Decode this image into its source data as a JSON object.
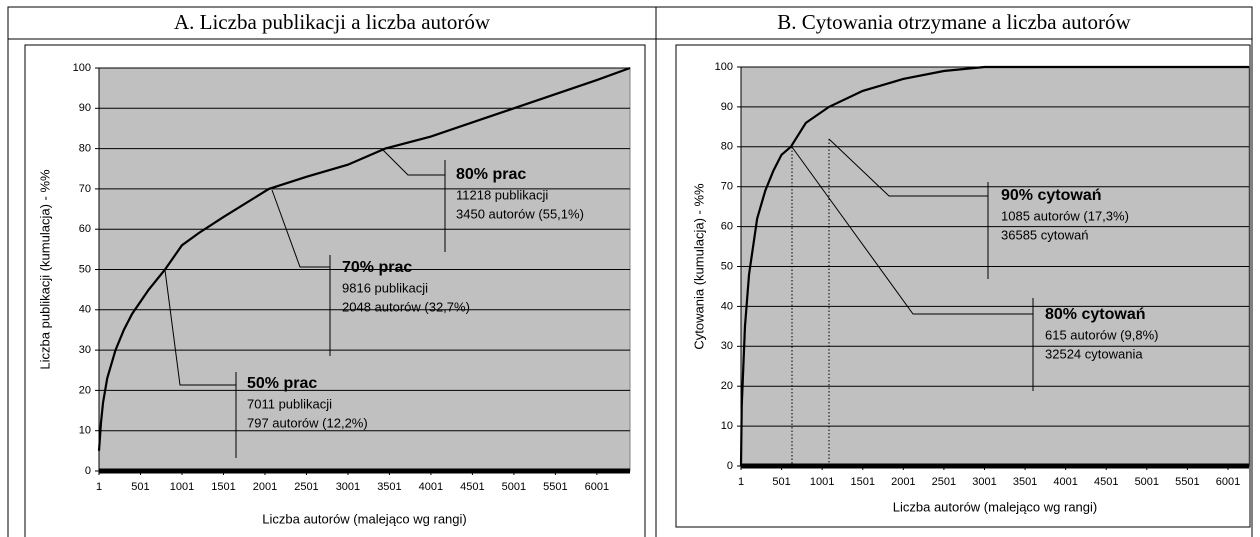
{
  "chart_data": [
    {
      "type": "line",
      "title": "A. Liczba publikacji a liczba autorów",
      "x_label": "Liczba autorów (malejąco wg rangi)",
      "y_label": "Liczba publikacji (kumulacja) - %%",
      "x": [
        1,
        25,
        50,
        100,
        200,
        300,
        400,
        500,
        600,
        797,
        1000,
        1200,
        1500,
        2048,
        2500,
        3000,
        3450,
        4000,
        5000,
        6000,
        6400
      ],
      "series": [
        {
          "color": "#000000",
          "values": [
            5,
            12,
            17,
            23,
            30,
            35,
            39,
            42,
            45,
            50,
            56,
            59,
            63,
            70,
            73,
            76,
            80,
            83,
            90,
            97,
            100
          ]
        }
      ],
      "xlim": [
        1,
        6400
      ],
      "ylim": [
        0,
        100
      ],
      "xticks": [
        1,
        501,
        1001,
        1501,
        2001,
        2501,
        3001,
        3501,
        4001,
        4501,
        5001,
        5501,
        6001
      ],
      "yticks": [
        0,
        10,
        20,
        30,
        40,
        50,
        60,
        70,
        80,
        90,
        100
      ],
      "grid": true,
      "annotations": [
        {
          "title": "50% prac",
          "lines": [
            "7011 publikacji",
            "797 autorów (12,2%)"
          ]
        },
        {
          "title": "70% prac",
          "lines": [
            "9816 publikacji",
            "2048 autorów (32,7%)"
          ]
        },
        {
          "title": "80% prac",
          "lines": [
            "11218 publikacji",
            "3450 autorów (55,1%)"
          ]
        }
      ]
    },
    {
      "type": "line",
      "title": "B. Cytowania otrzymane a liczba autorów",
      "x_label": "Liczba autorów (malejąco wg rangi)",
      "y_label": "Cytowania (kumulacja) - %%",
      "x": [
        1,
        10,
        50,
        100,
        200,
        300,
        400,
        500,
        615,
        800,
        1085,
        1500,
        2000,
        2500,
        3000,
        6260
      ],
      "series": [
        {
          "color": "#000000",
          "values": [
            0,
            15,
            35,
            48,
            62,
            69,
            74,
            78,
            80,
            86,
            90,
            94,
            97,
            99,
            100,
            100
          ]
        }
      ],
      "xlim": [
        1,
        6260
      ],
      "ylim": [
        0,
        100
      ],
      "xticks": [
        1,
        501,
        1001,
        1501,
        2001,
        2501,
        3001,
        3501,
        4001,
        4501,
        5001,
        5501,
        6001
      ],
      "yticks": [
        0,
        10,
        20,
        30,
        40,
        50,
        60,
        70,
        80,
        90,
        100
      ],
      "grid": true,
      "annotations": [
        {
          "title": "90% cytowań",
          "lines": [
            "1085 autorów (17,3%)",
            "36585 cytowań"
          ]
        },
        {
          "title": "80% cytowań",
          "lines": [
            "615 autorów (9,8%)",
            "32524 cytowania"
          ]
        }
      ]
    }
  ]
}
